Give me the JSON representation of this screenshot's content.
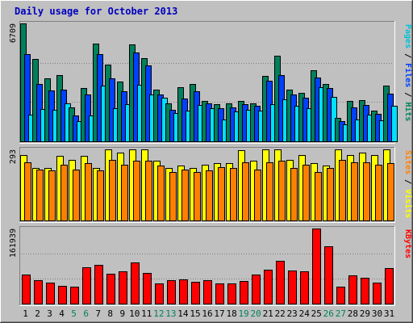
{
  "chart_data": {
    "type": "bar",
    "title": "Daily usage for October 2013",
    "categories": [
      "1",
      "2",
      "3",
      "4",
      "5",
      "6",
      "7",
      "8",
      "9",
      "10",
      "11",
      "12",
      "13",
      "14",
      "15",
      "16",
      "17",
      "18",
      "19",
      "20",
      "21",
      "22",
      "23",
      "24",
      "25",
      "26",
      "27",
      "28",
      "29",
      "30",
      "31"
    ],
    "weekend_days": [
      "5",
      "6",
      "12",
      "13",
      "19",
      "20",
      "26",
      "27"
    ],
    "panels": [
      {
        "id": "hits",
        "ylabel_parts": [
          {
            "text": "Pages",
            "color": "#00c0d8"
          },
          {
            "text": " / ",
            "color": "#000000"
          },
          {
            "text": "Files",
            "color": "#0040ff"
          },
          {
            "text": " / ",
            "color": "#000000"
          },
          {
            "text": "Hits",
            "color": "#00805c"
          }
        ],
        "ymax_label": "6709",
        "ymax": 6709,
        "series": [
          {
            "name": "Hits",
            "color": "#00805c",
            "values": [
              6709,
              4700,
              3600,
              3750,
              1950,
              3050,
              5550,
              4350,
              3400,
              5500,
              4750,
              2950,
              2150,
              3100,
              3250,
              2300,
              2100,
              2150,
              2300,
              2150,
              3700,
              4850,
              2950,
              2750,
              4050,
              3250,
              1350,
              2300,
              2350,
              1750,
              3150
            ]
          },
          {
            "name": "Files",
            "color": "#0040ff",
            "values": [
              4950,
              3250,
              2900,
              2950,
              1450,
              2650,
              4950,
              3600,
              2850,
              5050,
              4300,
              2650,
              1800,
              2450,
              2850,
              2150,
              1900,
              1950,
              2100,
              2000,
              3450,
              3750,
              2650,
              2500,
              3650,
              3050,
              1150,
              1950,
              2050,
              1550,
              2700
            ]
          },
          {
            "name": "Pages",
            "color": "#00e0ff",
            "values": [
              1500,
              1850,
              1800,
              2150,
              1150,
              1450,
              3150,
              1900,
              2100,
              3200,
              2650,
              2500,
              1600,
              1750,
              2050,
              1900,
              1250,
              1700,
              1800,
              1750,
              2100,
              2400,
              2000,
              1900,
              3100,
              2550,
              950,
              1250,
              1500,
              1200,
              2000
            ]
          }
        ]
      },
      {
        "id": "visits",
        "ylabel_parts": [
          {
            "text": "Sites",
            "color": "#ff8000"
          },
          {
            "text": " / ",
            "color": "#000000"
          },
          {
            "text": "Visits",
            "color": "#ffff00"
          }
        ],
        "ymax_label": "293",
        "ymax": 293,
        "series": [
          {
            "name": "Visits",
            "color": "#ffff00",
            "values": [
              270,
              215,
              215,
              265,
              250,
              265,
              215,
              293,
              280,
              293,
              293,
              245,
              215,
              225,
              215,
              230,
              235,
              235,
              290,
              245,
              293,
              293,
              250,
              270,
              235,
              225,
              293,
              270,
              280,
              270,
              293
            ]
          },
          {
            "name": "Sites",
            "color": "#ff8000",
            "values": [
              240,
              210,
              205,
              230,
              210,
              235,
              205,
              250,
              230,
              245,
              245,
              225,
              200,
              210,
              200,
              205,
              220,
              215,
              240,
              210,
              240,
              245,
              215,
              230,
              200,
              215,
              250,
              240,
              240,
              230,
              235
            ]
          }
        ]
      },
      {
        "id": "kbytes",
        "ylabel_parts": [
          {
            "text": "KBytes",
            "color": "#ff0000"
          }
        ],
        "ymax_label": "161939",
        "ymax": 161939,
        "series": [
          {
            "name": "KBytes",
            "color": "#ff0000",
            "values": [
              62000,
              50000,
              46000,
              39000,
              37000,
              79000,
              84000,
              65000,
              70000,
              88000,
              67000,
              43000,
              50000,
              52000,
              47000,
              50000,
              44000,
              43000,
              48000,
              63000,
              73000,
              93000,
              71000,
              70000,
              161939,
              123000,
              36000,
              61000,
              55000,
              46000,
              77000
            ]
          }
        ]
      }
    ]
  }
}
